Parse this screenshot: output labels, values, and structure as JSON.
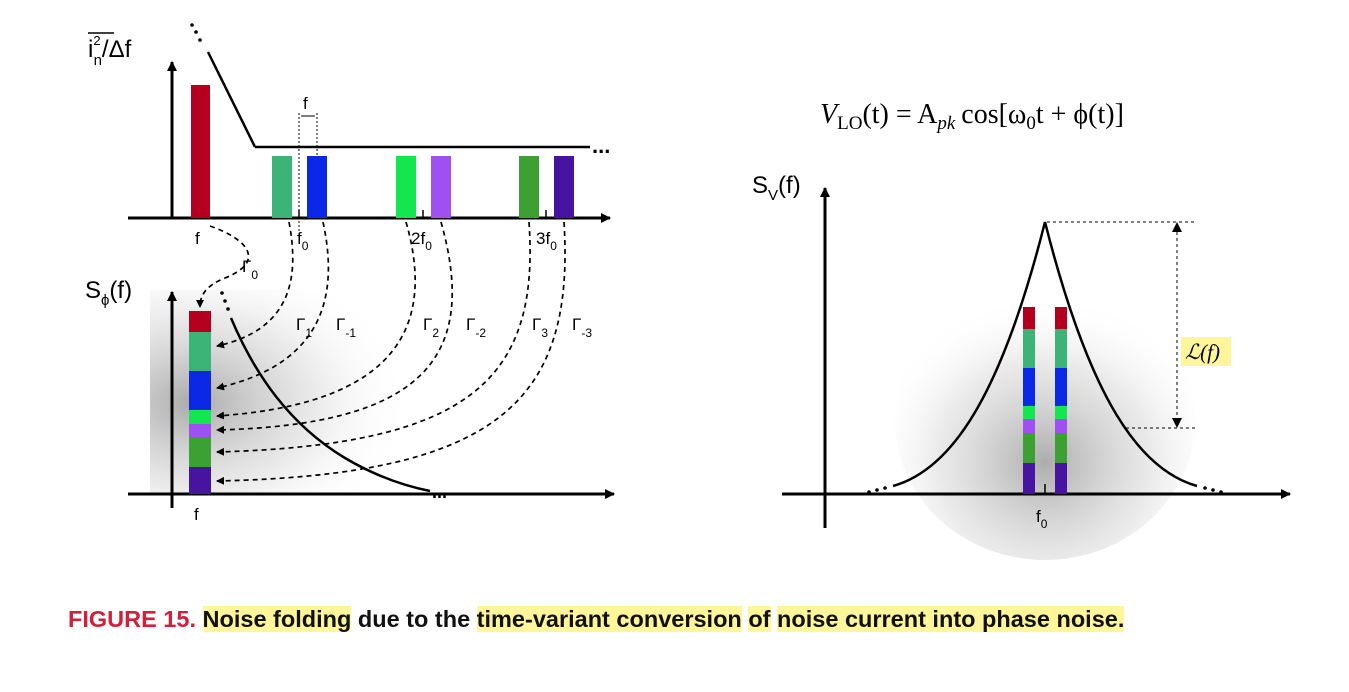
{
  "left_diagram": {
    "y_label_top_symbol": "i",
    "y_label_top_sup": "2",
    "y_label_top_sub": "n",
    "y_label_top_suffix": "/Δf",
    "y_label_bottom_main": "S",
    "y_label_bottom_sub": "ϕ",
    "y_label_bottom_suffix": "(f)",
    "x_ticks_top": [
      {
        "main": "f",
        "sub": ""
      },
      {
        "main": "f",
        "sub": "0"
      },
      {
        "main": "2f",
        "sub": "0"
      },
      {
        "main": "3f",
        "sub": "0"
      }
    ],
    "x_tick_bottom": "f",
    "spacing_label": "f",
    "gamma_labels": [
      {
        "main": "Γ",
        "sub": "0"
      },
      {
        "main": "Γ",
        "sub": "1"
      },
      {
        "main": "Γ",
        "sub": "-1"
      },
      {
        "main": "Γ",
        "sub": "2"
      },
      {
        "main": "Γ",
        "sub": "-2"
      },
      {
        "main": "Γ",
        "sub": "3"
      },
      {
        "main": "Γ",
        "sub": "-3"
      }
    ],
    "ellipsis": "..."
  },
  "right_diagram": {
    "equation_lhs": "V",
    "equation_lhs_sub": "LO",
    "equation_rhs": "(t) = A",
    "equation_rhs_sub": "pk",
    "equation_tail": "cos[ω",
    "equation_tail_sub": "0",
    "equation_end": "t + ϕ(t)]",
    "y_label_main": "S",
    "y_label_sub": "V",
    "y_label_suffix": "(f)",
    "x_tick_main": "f",
    "x_tick_sub": "0",
    "annotation": "ℒ(f)"
  },
  "colors": {
    "dark_red": "#b4001e",
    "teal_green": "#3cb478",
    "blue": "#0a28e6",
    "bright_green": "#14e650",
    "purple": "#a050f0",
    "green": "#3ca032",
    "indigo": "#4614a0",
    "highlight": "#fff59a",
    "caption_red": "#d21f3c"
  },
  "caption": {
    "figure_label": "FIGURE 15.",
    "parts": [
      {
        "text": "Noise folding",
        "highlight": true
      },
      {
        "text": " due to the ",
        "highlight": false
      },
      {
        "text": "time-variant conversion",
        "highlight": true
      },
      {
        "text": " ",
        "highlight": false
      },
      {
        "text": "of",
        "highlight": true
      },
      {
        "text": " ",
        "highlight": false
      },
      {
        "text": "noise current into phase noise.",
        "highlight": true
      }
    ]
  }
}
